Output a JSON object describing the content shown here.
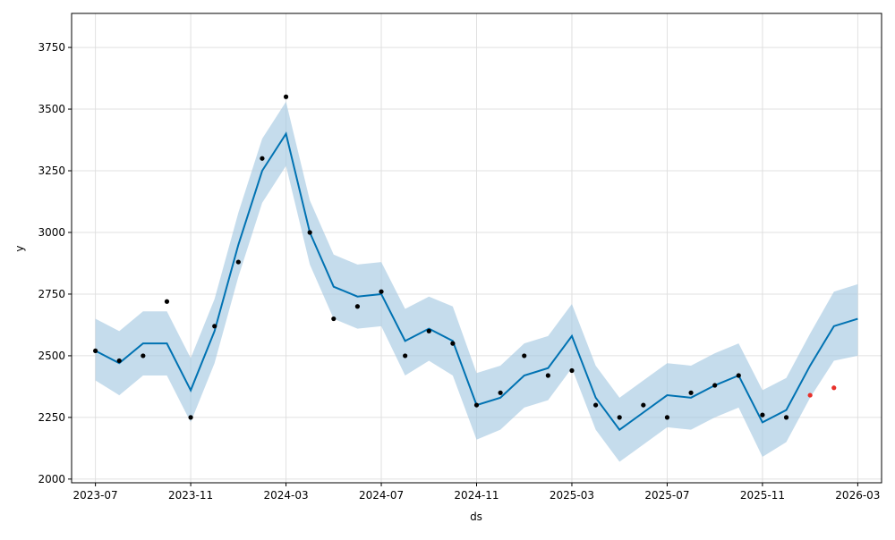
{
  "chart_data": {
    "type": "forecast",
    "xlabel": "ds",
    "ylabel": "y",
    "xlim": [
      "2023-06",
      "2026-04"
    ],
    "ylim": [
      1985,
      3888
    ],
    "xticks": [
      "2023-07",
      "2023-11",
      "2024-03",
      "2024-07",
      "2024-11",
      "2025-03",
      "2025-07",
      "2025-11",
      "2026-03"
    ],
    "yticks": [
      2000,
      2250,
      2500,
      2750,
      3000,
      3250,
      3500,
      3750
    ],
    "grid": true,
    "forecast": {
      "color": "#0072b2",
      "band_color": "#a6c9e2",
      "x": [
        "2023-07",
        "2023-08",
        "2023-09",
        "2023-10",
        "2023-11",
        "2023-12",
        "2024-01",
        "2024-02",
        "2024-03",
        "2024-04",
        "2024-05",
        "2024-06",
        "2024-07",
        "2024-08",
        "2024-09",
        "2024-10",
        "2024-11",
        "2024-12",
        "2025-01",
        "2025-02",
        "2025-03",
        "2025-04",
        "2025-05",
        "2025-06",
        "2025-07",
        "2025-08",
        "2025-09",
        "2025-10",
        "2025-11",
        "2025-12",
        "2026-01",
        "2026-02",
        "2026-03"
      ],
      "values": [
        2520,
        2470,
        2550,
        2550,
        2360,
        2600,
        2950,
        3250,
        3400,
        3000,
        2780,
        2740,
        2750,
        2560,
        2610,
        2560,
        2300,
        2330,
        2420,
        2450,
        2580,
        2330,
        2200,
        2270,
        2340,
        2330,
        2380,
        2420,
        2230,
        2280,
        2460,
        2620,
        2650
      ],
      "lower": [
        2400,
        2340,
        2420,
        2420,
        2230,
        2470,
        2820,
        3120,
        3270,
        2870,
        2650,
        2610,
        2620,
        2420,
        2480,
        2420,
        2160,
        2200,
        2290,
        2320,
        2450,
        2200,
        2070,
        2140,
        2210,
        2200,
        2250,
        2290,
        2090,
        2150,
        2330,
        2480,
        2500
      ],
      "upper": [
        2650,
        2600,
        2680,
        2680,
        2490,
        2730,
        3080,
        3380,
        3530,
        3130,
        2910,
        2870,
        2880,
        2690,
        2740,
        2700,
        2430,
        2460,
        2550,
        2580,
        2710,
        2460,
        2330,
        2400,
        2470,
        2460,
        2510,
        2550,
        2360,
        2410,
        2590,
        2760,
        2790
      ]
    },
    "series": [
      {
        "color": "#000000",
        "x": [
          "2023-07",
          "2023-08",
          "2023-09",
          "2023-10",
          "2023-11",
          "2023-12",
          "2024-01",
          "2024-02",
          "2024-03",
          "2024-04",
          "2024-05",
          "2024-06",
          "2024-07",
          "2024-08",
          "2024-09",
          "2024-10",
          "2024-11",
          "2024-12",
          "2025-01",
          "2025-02",
          "2025-03",
          "2025-04",
          "2025-05",
          "2025-06",
          "2025-07",
          "2025-08",
          "2025-09",
          "2025-10",
          "2025-11",
          "2025-12"
        ],
        "values": [
          2520,
          2480,
          2500,
          2720,
          2250,
          2620,
          2880,
          3300,
          3550,
          3000,
          2650,
          2700,
          2760,
          2500,
          2600,
          2550,
          2300,
          2350,
          2500,
          2420,
          2440,
          2300,
          2250,
          2300,
          2250,
          2350,
          2380,
          2420,
          2260,
          2250
        ]
      },
      {
        "color": "#e8302a",
        "x": [
          "2026-01",
          "2026-02"
        ],
        "values": [
          2340,
          2370
        ]
      }
    ]
  }
}
